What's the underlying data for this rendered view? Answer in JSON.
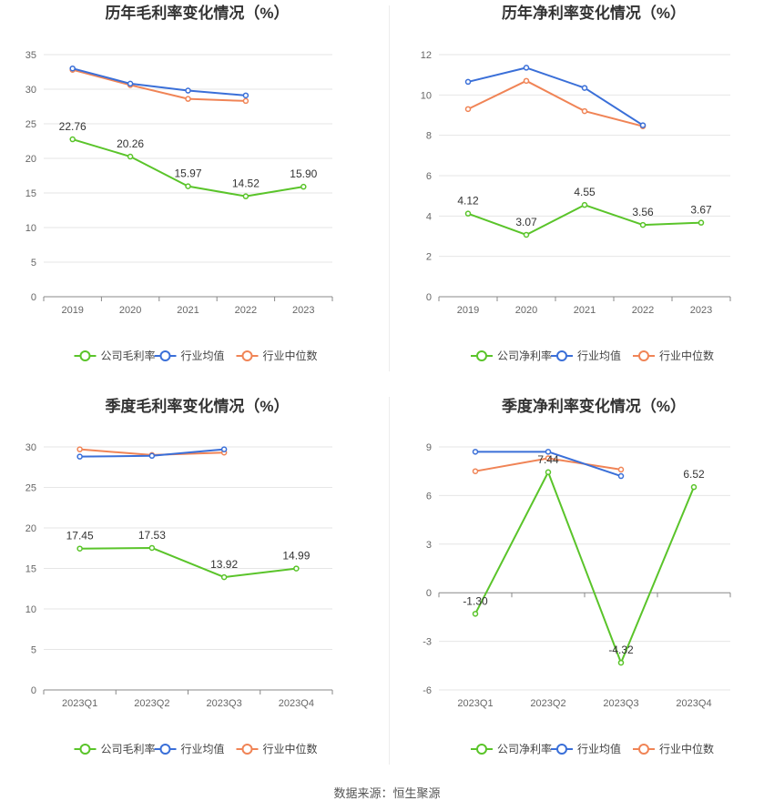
{
  "source_text": "数据来源：恒生聚源",
  "colors": {
    "company": "#5ac42a",
    "industry_avg": "#3a6fd8",
    "industry_median": "#f08456"
  },
  "chart_data": [
    {
      "type": "line",
      "title": "历年毛利率变化情况（%）",
      "categories": [
        "2019",
        "2020",
        "2021",
        "2022",
        "2023"
      ],
      "ylim": [
        0,
        35
      ],
      "yticks": [
        0,
        5,
        10,
        15,
        20,
        25,
        30,
        35
      ],
      "grid": true,
      "legend_position": "bottom",
      "series": [
        {
          "name": "公司毛利率",
          "values": [
            22.76,
            20.26,
            15.97,
            14.52,
            15.9
          ],
          "labels": [
            "22.76",
            "20.26",
            "15.97",
            "14.52",
            "15.90"
          ]
        },
        {
          "name": "行业均值",
          "values": [
            33.0,
            30.8,
            29.8,
            29.1,
            null
          ]
        },
        {
          "name": "行业中位数",
          "values": [
            32.8,
            30.6,
            28.6,
            28.3,
            null
          ]
        }
      ]
    },
    {
      "type": "line",
      "title": "历年净利率变化情况（%）",
      "categories": [
        "2019",
        "2020",
        "2021",
        "2022",
        "2023"
      ],
      "ylim": [
        0,
        12
      ],
      "yticks": [
        0,
        2,
        4,
        6,
        8,
        10,
        12
      ],
      "grid": true,
      "legend_position": "bottom",
      "series": [
        {
          "name": "公司净利率",
          "values": [
            4.12,
            3.07,
            4.55,
            3.56,
            3.67
          ],
          "labels": [
            "4.12",
            "3.07",
            "4.55",
            "3.56",
            "3.67"
          ]
        },
        {
          "name": "行业均值",
          "values": [
            10.65,
            11.35,
            10.35,
            8.5,
            null
          ]
        },
        {
          "name": "行业中位数",
          "values": [
            9.3,
            10.7,
            9.2,
            8.45,
            null
          ]
        }
      ]
    },
    {
      "type": "line",
      "title": "季度毛利率变化情况（%）",
      "categories": [
        "2023Q1",
        "2023Q2",
        "2023Q3",
        "2023Q4"
      ],
      "ylim": [
        0,
        30
      ],
      "yticks": [
        0,
        5,
        10,
        15,
        20,
        25,
        30
      ],
      "grid": true,
      "legend_position": "bottom",
      "series": [
        {
          "name": "公司毛利率",
          "values": [
            17.45,
            17.53,
            13.92,
            14.99
          ],
          "labels": [
            "17.45",
            "17.53",
            "13.92",
            "14.99"
          ]
        },
        {
          "name": "行业均值",
          "values": [
            28.8,
            28.9,
            29.7,
            null
          ]
        },
        {
          "name": "行业中位数",
          "values": [
            29.7,
            29.0,
            29.3,
            null
          ]
        }
      ]
    },
    {
      "type": "line",
      "title": "季度净利率变化情况（%）",
      "categories": [
        "2023Q1",
        "2023Q2",
        "2023Q3",
        "2023Q4"
      ],
      "ylim": [
        -6,
        9
      ],
      "yticks": [
        -6,
        -3,
        0,
        3,
        6,
        9
      ],
      "grid": true,
      "legend_position": "bottom",
      "series": [
        {
          "name": "公司净利率",
          "values": [
            -1.3,
            7.44,
            -4.32,
            6.52
          ],
          "labels": [
            "-1.30",
            "7.44",
            "-4.32",
            "6.52"
          ]
        },
        {
          "name": "行业均值",
          "values": [
            8.7,
            8.7,
            7.2,
            null
          ]
        },
        {
          "name": "行业中位数",
          "values": [
            7.5,
            8.3,
            7.6,
            null
          ]
        }
      ]
    }
  ]
}
